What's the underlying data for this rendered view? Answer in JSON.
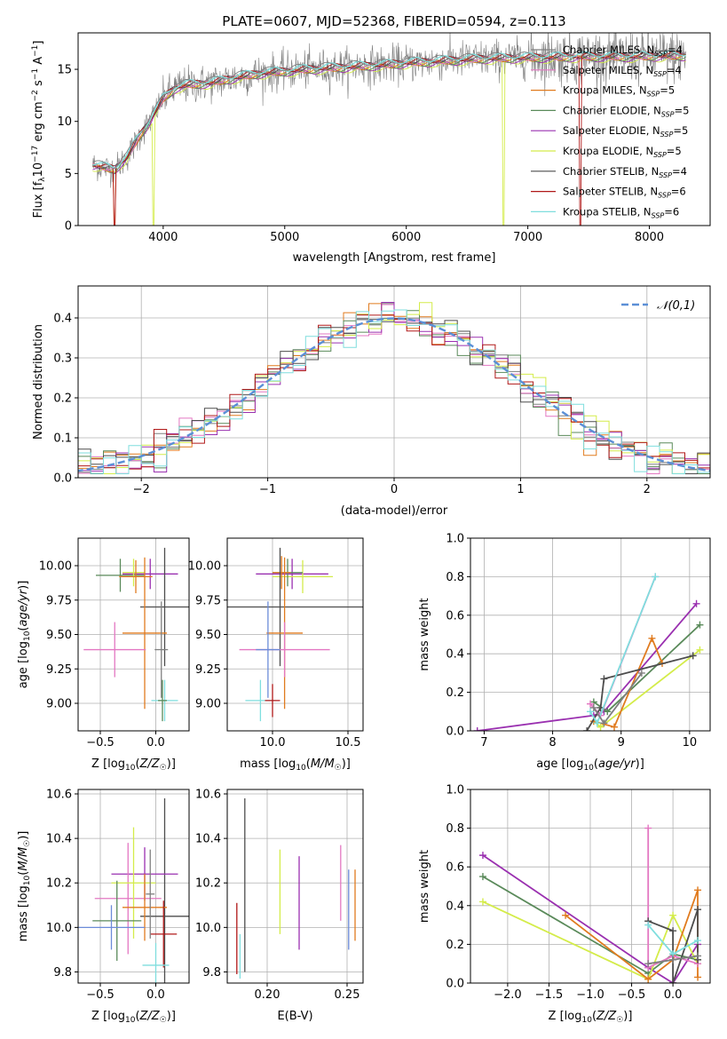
{
  "figure": {
    "title": "PLATE=0607, MJD=52368, FIBERID=0594, z=0.113"
  },
  "colors": {
    "chabrier_miles": "#7f7f7f",
    "salpeter_miles": "#e377c2",
    "kroupa_miles": "#e07b1f",
    "chabrier_elodie": "#5a8a5a",
    "salpeter_elodie": "#9a30b0",
    "kroupa_elodie": "#d4ec4a",
    "chabrier_stelib": "#4d4d4d",
    "salpeter_stelib": "#b01818",
    "kroupa_stelib": "#7fdede",
    "gaussian": "#5b8fd6",
    "axis_blue": "#6b8bd8"
  },
  "chart_data": [
    {
      "id": "spectrum",
      "type": "line",
      "xlabel": "wavelength [Angstrom, rest frame]",
      "ylabel": "Flux [f_λ10^-17 erg cm^-2 s^-1 A^-1]",
      "xlim": [
        3300,
        8500
      ],
      "ylim": [
        0,
        18.5
      ],
      "xticks": [
        4000,
        5000,
        6000,
        7000,
        8000
      ],
      "yticks": [
        0,
        5,
        10,
        15
      ],
      "grid": false,
      "legend_position": "right",
      "legend": [
        {
          "label": "Chabrier MILES, N",
          "sub": "SSP",
          "suffix": "=4",
          "color_key": "chabrier_miles"
        },
        {
          "label": "Salpeter MILES, N",
          "sub": "SSP",
          "suffix": "=4",
          "color_key": "salpeter_miles"
        },
        {
          "label": "Kroupa MILES, N",
          "sub": "SSP",
          "suffix": "=5",
          "color_key": "kroupa_miles"
        },
        {
          "label": "Chabrier ELODIE, N",
          "sub": "SSP",
          "suffix": "=5",
          "color_key": "chabrier_elodie"
        },
        {
          "label": "Salpeter ELODIE, N",
          "sub": "SSP",
          "suffix": "=5",
          "color_key": "salpeter_elodie"
        },
        {
          "label": "Kroupa ELODIE, N",
          "sub": "SSP",
          "suffix": "=5",
          "color_key": "kroupa_elodie"
        },
        {
          "label": "Chabrier STELIB, N",
          "sub": "SSP",
          "suffix": "=4",
          "color_key": "chabrier_stelib"
        },
        {
          "label": "Salpeter STELIB, N",
          "sub": "SSP",
          "suffix": "=6",
          "color_key": "salpeter_stelib"
        },
        {
          "label": "Kroupa STELIB, N",
          "sub": "SSP",
          "suffix": "=6",
          "color_key": "kroupa_stelib"
        }
      ],
      "continuum": {
        "x": [
          3420,
          3500,
          3600,
          3700,
          3800,
          3900,
          4000,
          4100,
          4200,
          4400,
          4600,
          4800,
          5000,
          5200,
          5500,
          5800,
          6000,
          6300,
          6600,
          7000,
          7400,
          7800,
          8200
        ],
        "y": [
          5.8,
          5.6,
          5.4,
          6.5,
          8.5,
          10.2,
          12.2,
          13.2,
          13.5,
          13.7,
          14.2,
          14.6,
          14.8,
          15.0,
          15.2,
          15.4,
          15.6,
          15.8,
          16.0,
          16.1,
          16.2,
          16.2,
          16.3
        ]
      },
      "drops_to_zero": [
        3600,
        3920,
        6800,
        7430
      ]
    },
    {
      "id": "residual_histogram",
      "type": "line",
      "xlabel": "(data-model)/error",
      "ylabel": "Normed distribution",
      "xlim": [
        -2.5,
        2.5
      ],
      "ylim": [
        0,
        0.48
      ],
      "xticks": [
        -2,
        -1,
        0,
        1,
        2
      ],
      "yticks": [
        0.0,
        0.1,
        0.2,
        0.3,
        0.4
      ],
      "grid": true,
      "legend_position": "top-right",
      "gaussian_label": "𝒩(0,1)",
      "bin_width": 0.1
    },
    {
      "id": "age_vs_z",
      "type": "scatter",
      "xlabel": "Z [log10(Z/Z☉)]",
      "ylabel": "age [log10(age/yr)]",
      "xlim": [
        -0.7,
        0.3
      ],
      "ylim": [
        8.8,
        10.2
      ],
      "xticks": [
        -0.5,
        0.0
      ],
      "yticks": [
        9.0,
        9.25,
        9.5,
        9.75,
        10.0
      ],
      "grid": true,
      "points": [
        {
          "x": -0.32,
          "y": 9.93,
          "xerr": 0.22,
          "yerr": 0.12,
          "color_key": "chabrier_elodie"
        },
        {
          "x": -0.05,
          "y": 9.94,
          "xerr": 0.25,
          "yerr": 0.11,
          "color_key": "salpeter_elodie"
        },
        {
          "x": -0.2,
          "y": 9.95,
          "xerr": 0.1,
          "yerr": 0.1,
          "color_key": "kroupa_elodie"
        },
        {
          "x": -0.18,
          "y": 9.92,
          "xerr": 0.15,
          "yerr": 0.12,
          "color_key": "kroupa_miles"
        },
        {
          "x": 0.08,
          "y": 9.7,
          "xerr": 0.22,
          "yerr": 0.43,
          "color_key": "chabrier_stelib"
        },
        {
          "x": -0.1,
          "y": 9.51,
          "xerr": 0.2,
          "yerr": 0.55,
          "color_key": "kroupa_miles"
        },
        {
          "x": -0.37,
          "y": 9.39,
          "xerr": 0.28,
          "yerr": 0.2,
          "color_key": "salpeter_miles"
        },
        {
          "x": 0.05,
          "y": 9.39,
          "xerr": 0.06,
          "yerr": 0.35,
          "color_key": "chabrier_miles"
        },
        {
          "x": 0.08,
          "y": 9.02,
          "xerr": 0.12,
          "yerr": 0.15,
          "color_key": "kroupa_stelib"
        },
        {
          "x": 0.06,
          "y": 9.02,
          "xerr": 0.04,
          "yerr": 0.15,
          "color_key": "chabrier_elodie"
        }
      ]
    },
    {
      "id": "age_vs_mass",
      "type": "scatter",
      "xlabel": "mass [log10(M/M☉)]",
      "ylabel": "",
      "xlim": [
        9.7,
        10.6
      ],
      "ylim": [
        8.8,
        10.2
      ],
      "xticks": [
        10.0,
        10.5
      ],
      "yticks": [
        9.0,
        9.25,
        9.5,
        9.75,
        10.0
      ],
      "grid": true,
      "points": [
        {
          "x": 10.13,
          "y": 9.94,
          "xerr": 0.24,
          "yerr": 0.11,
          "color_key": "salpeter_elodie"
        },
        {
          "x": 10.2,
          "y": 9.92,
          "xerr": 0.2,
          "yerr": 0.12,
          "color_key": "kroupa_elodie"
        },
        {
          "x": 10.1,
          "y": 9.95,
          "xerr": 0.1,
          "yerr": 0.1,
          "color_key": "chabrier_elodie"
        },
        {
          "x": 10.06,
          "y": 9.95,
          "xerr": 0.06,
          "yerr": 0.12,
          "color_key": "kroupa_miles"
        },
        {
          "x": 10.05,
          "y": 9.7,
          "xerr": 0.55,
          "yerr": 0.43,
          "color_key": "chabrier_stelib"
        },
        {
          "x": 10.08,
          "y": 9.51,
          "xerr": 0.12,
          "yerr": 0.55,
          "color_key": "kroupa_miles"
        },
        {
          "x": 10.08,
          "y": 9.39,
          "xerr": 0.3,
          "yerr": 0.2,
          "color_key": "salpeter_miles"
        },
        {
          "x": 9.97,
          "y": 9.39,
          "xerr": 0.08,
          "yerr": 0.35,
          "color_key": "axis_blue"
        },
        {
          "x": 9.92,
          "y": 9.02,
          "xerr": 0.1,
          "yerr": 0.15,
          "color_key": "kroupa_stelib"
        },
        {
          "x": 10.0,
          "y": 9.02,
          "xerr": 0.05,
          "yerr": 0.12,
          "color_key": "salpeter_stelib"
        }
      ]
    },
    {
      "id": "weight_vs_age",
      "type": "line",
      "xlabel": "age [log10(age/yr)]",
      "ylabel": "mass weight",
      "xlim": [
        6.8,
        10.3
      ],
      "ylim": [
        0,
        1.0
      ],
      "xticks": [
        7,
        8,
        9,
        10
      ],
      "yticks": [
        0.0,
        0.2,
        0.4,
        0.6,
        0.8,
        1.0
      ],
      "grid": true,
      "series": [
        {
          "color_key": "salpeter_elodie",
          "x": [
            6.9,
            8.6,
            8.75,
            10.1
          ],
          "y": [
            0.0,
            0.08,
            0.1,
            0.66
          ]
        },
        {
          "color_key": "chabrier_elodie",
          "x": [
            8.6,
            8.8,
            10.15
          ],
          "y": [
            0.15,
            0.1,
            0.55
          ]
        },
        {
          "color_key": "kroupa_elodie",
          "x": [
            8.6,
            8.7,
            10.15
          ],
          "y": [
            0.05,
            0.02,
            0.42
          ]
        },
        {
          "color_key": "kroupa_miles",
          "x": [
            8.6,
            8.9,
            9.45,
            9.6
          ],
          "y": [
            0.05,
            0.02,
            0.48,
            0.35
          ]
        },
        {
          "color_key": "salpeter_miles",
          "x": [
            8.55,
            8.7,
            9.5
          ],
          "y": [
            0.14,
            0.08,
            0.8
          ]
        },
        {
          "color_key": "chabrier_stelib",
          "x": [
            8.5,
            8.7,
            8.75,
            10.05
          ],
          "y": [
            0.0,
            0.12,
            0.27,
            0.39
          ]
        },
        {
          "color_key": "kroupa_stelib",
          "x": [
            8.55,
            8.65,
            9.5
          ],
          "y": [
            0.1,
            0.04,
            0.8
          ]
        },
        {
          "color_key": "chabrier_miles",
          "x": [
            8.6,
            8.75,
            9.3
          ],
          "y": [
            0.12,
            0.04,
            0.3
          ]
        }
      ]
    },
    {
      "id": "mass_vs_z",
      "type": "scatter",
      "xlabel": "Z [log10(Z/Z☉)]",
      "ylabel": "mass [log10(M/M☉)]",
      "xlim": [
        -0.7,
        0.3
      ],
      "ylim": [
        9.75,
        10.62
      ],
      "xticks": [
        -0.5,
        0.0
      ],
      "yticks": [
        9.8,
        10.0,
        10.2,
        10.4,
        10.6
      ],
      "grid": true,
      "points": [
        {
          "x": 0.08,
          "y": 10.05,
          "xerr": 0.22,
          "yerr": 0.53,
          "color_key": "chabrier_stelib"
        },
        {
          "x": -0.1,
          "y": 10.24,
          "xerr": 0.3,
          "yerr": 0.12,
          "color_key": "salpeter_elodie"
        },
        {
          "x": -0.25,
          "y": 10.13,
          "xerr": 0.3,
          "yerr": 0.25,
          "color_key": "salpeter_miles"
        },
        {
          "x": -0.2,
          "y": 10.2,
          "xerr": 0.2,
          "yerr": 0.25,
          "color_key": "kroupa_elodie"
        },
        {
          "x": -0.1,
          "y": 10.09,
          "xerr": 0.2,
          "yerr": 0.15,
          "color_key": "kroupa_miles"
        },
        {
          "x": -0.35,
          "y": 10.03,
          "xerr": 0.22,
          "yerr": 0.18,
          "color_key": "chabrier_elodie"
        },
        {
          "x": -0.4,
          "y": 10.0,
          "xerr": 0.3,
          "yerr": 0.1,
          "color_key": "axis_blue"
        },
        {
          "x": 0.07,
          "y": 9.97,
          "xerr": 0.12,
          "yerr": 0.15,
          "color_key": "salpeter_stelib"
        },
        {
          "x": 0.0,
          "y": 9.83,
          "xerr": 0.12,
          "yerr": 0.1,
          "color_key": "kroupa_stelib"
        },
        {
          "x": -0.05,
          "y": 10.15,
          "xerr": 0.04,
          "yerr": 0.2,
          "color_key": "chabrier_miles"
        }
      ]
    },
    {
      "id": "mass_vs_ebv",
      "type": "scatter",
      "xlabel": "E(B-V)",
      "ylabel": "",
      "xlim": [
        0.175,
        0.26
      ],
      "ylim": [
        9.75,
        10.62
      ],
      "xticks": [
        0.2,
        0.25
      ],
      "yticks": [
        9.8,
        10.0,
        10.2,
        10.4,
        10.6
      ],
      "grid": true,
      "points": [
        {
          "x": 0.181,
          "y": 9.95,
          "xerr": 0,
          "yerr": 0.16,
          "color_key": "salpeter_stelib"
        },
        {
          "x": 0.183,
          "y": 9.87,
          "xerr": 0,
          "yerr": 0.1,
          "color_key": "kroupa_stelib"
        },
        {
          "x": 0.186,
          "y": 10.19,
          "xerr": 0,
          "yerr": 0.39,
          "color_key": "chabrier_stelib"
        },
        {
          "x": 0.208,
          "y": 10.16,
          "xerr": 0,
          "yerr": 0.19,
          "color_key": "kroupa_elodie"
        },
        {
          "x": 0.22,
          "y": 10.11,
          "xerr": 0,
          "yerr": 0.21,
          "color_key": "salpeter_elodie"
        },
        {
          "x": 0.246,
          "y": 10.2,
          "xerr": 0,
          "yerr": 0.17,
          "color_key": "salpeter_miles"
        },
        {
          "x": 0.251,
          "y": 10.08,
          "xerr": 0,
          "yerr": 0.18,
          "color_key": "axis_blue"
        },
        {
          "x": 0.255,
          "y": 10.1,
          "xerr": 0,
          "yerr": 0.16,
          "color_key": "kroupa_miles"
        }
      ]
    },
    {
      "id": "weight_vs_z",
      "type": "line",
      "xlabel": "Z [log10(Z/Z☉)]",
      "ylabel": "mass weight",
      "xlim": [
        -2.45,
        0.45
      ],
      "ylim": [
        0,
        1.0
      ],
      "xticks": [
        -2.0,
        -1.5,
        -1.0,
        -0.5,
        0.0
      ],
      "yticks": [
        0.0,
        0.2,
        0.4,
        0.6,
        0.8,
        1.0
      ],
      "grid": true,
      "series": [
        {
          "color_key": "salpeter_elodie",
          "x": [
            -2.3,
            -0.3,
            0.0,
            0.3
          ],
          "y": [
            0.66,
            0.08,
            0.0,
            0.2
          ]
        },
        {
          "color_key": "chabrier_elodie",
          "x": [
            -2.3,
            -0.3,
            0.0,
            0.3
          ],
          "y": [
            0.55,
            0.05,
            0.15,
            0.12
          ]
        },
        {
          "color_key": "kroupa_elodie",
          "x": [
            -2.3,
            -0.3,
            0.0,
            0.3
          ],
          "y": [
            0.42,
            0.02,
            0.35,
            0.1
          ]
        },
        {
          "color_key": "kroupa_miles",
          "x": [
            -1.3,
            -0.3,
            0.0,
            0.3,
            0.3
          ],
          "y": [
            0.35,
            0.02,
            0.12,
            0.48,
            0.03
          ]
        },
        {
          "color_key": "salpeter_miles",
          "x": [
            -0.3,
            -0.3,
            0.0,
            0.3
          ],
          "y": [
            0.8,
            0.08,
            0.14,
            0.1
          ]
        },
        {
          "color_key": "chabrier_stelib",
          "x": [
            -0.3,
            0.0,
            0.0,
            0.3,
            0.3
          ],
          "y": [
            0.32,
            0.27,
            0.0,
            0.38,
            0.12
          ]
        },
        {
          "color_key": "kroupa_stelib",
          "x": [
            -0.3,
            0.0,
            0.3
          ],
          "y": [
            0.3,
            0.15,
            0.22
          ]
        },
        {
          "color_key": "chabrier_miles",
          "x": [
            -0.3,
            0.0,
            0.3
          ],
          "y": [
            0.1,
            0.12,
            0.14
          ]
        }
      ]
    }
  ]
}
